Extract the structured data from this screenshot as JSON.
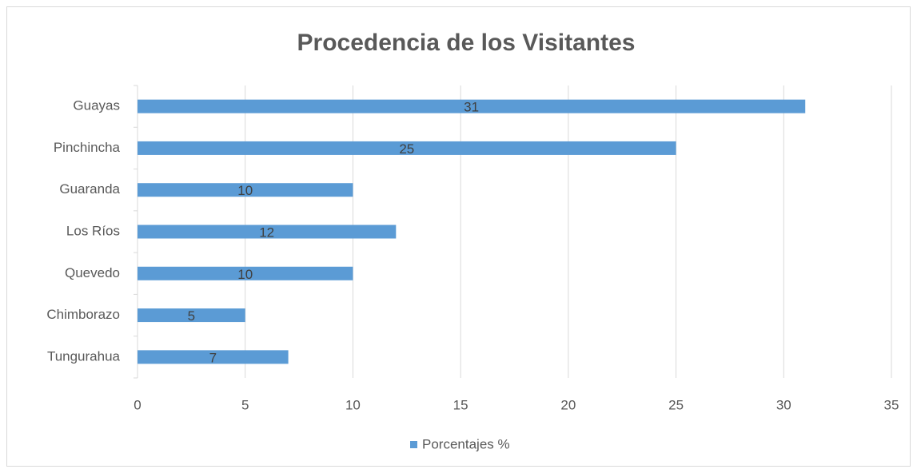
{
  "chart_data": {
    "type": "bar",
    "orientation": "horizontal",
    "title": "Procedencia de los Visitantes",
    "categories": [
      "Guayas",
      "Pinchincha",
      "Guaranda",
      "Los Ríos",
      "Quevedo",
      "Chimborazo",
      "Tungurahua"
    ],
    "series": [
      {
        "name": "Porcentajes %",
        "color": "#5b9bd5",
        "values": [
          31,
          25,
          10,
          12,
          10,
          5,
          7
        ]
      }
    ],
    "xlim": [
      0,
      35
    ],
    "xticks": [
      0,
      5,
      10,
      15,
      20,
      25,
      30,
      35
    ],
    "grid": true,
    "legend": "bottom"
  }
}
